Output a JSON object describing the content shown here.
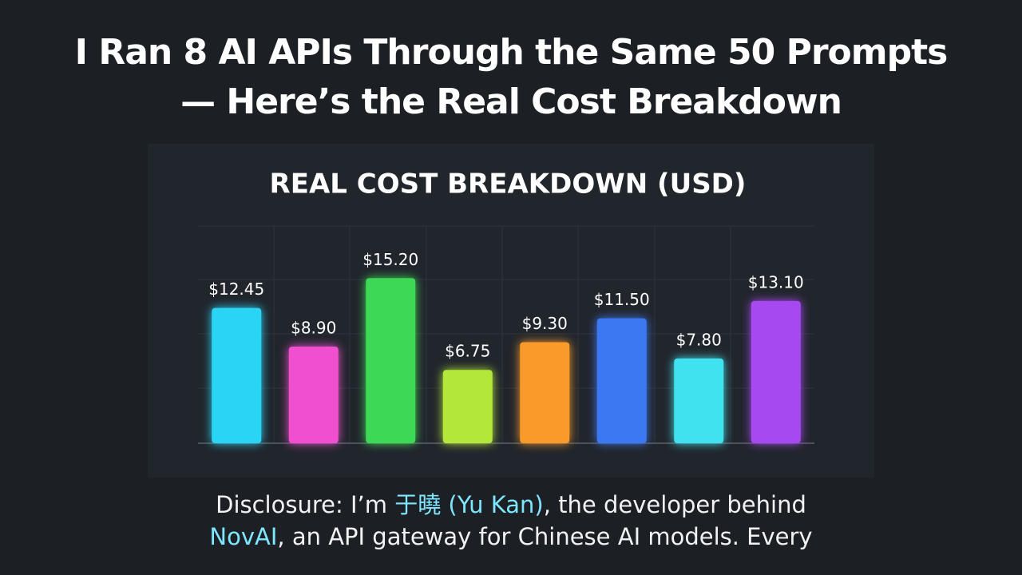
{
  "header": {
    "title_lines": [
      "I Ran 8 AI APIs Through the Same 50 Prompts",
      "— Here’s the Real Cost Breakdown"
    ]
  },
  "chart_data": {
    "type": "bar",
    "title": "REAL COST BREAKDOWN (USD)",
    "values": [
      12.45,
      8.9,
      15.2,
      6.75,
      9.3,
      11.5,
      7.8,
      13.1
    ],
    "value_labels": [
      "$12.45",
      "$8.90",
      "$15.20",
      "$6.75",
      "$9.30",
      "$11.50",
      "$7.80",
      "$13.10"
    ],
    "colors": [
      "#2ad4f5",
      "#f04fcf",
      "#3ed855",
      "#b3e83a",
      "#f99a2c",
      "#3a78f2",
      "#3fe2ef",
      "#a74af0"
    ],
    "ylim": [
      0,
      20
    ]
  },
  "disclosure": {
    "lines": [
      {
        "segments": [
          {
            "text": "Disclosure: I’m ",
            "highlight": false
          },
          {
            "text": "于曉 (Yu Kan)",
            "highlight": true
          },
          {
            "text": ", the developer behind",
            "highlight": false
          }
        ]
      },
      {
        "segments": [
          {
            "text": "NovAI",
            "highlight": true
          },
          {
            "text": ", an API gateway for Chinese AI models. Every",
            "highlight": false
          }
        ]
      }
    ]
  }
}
